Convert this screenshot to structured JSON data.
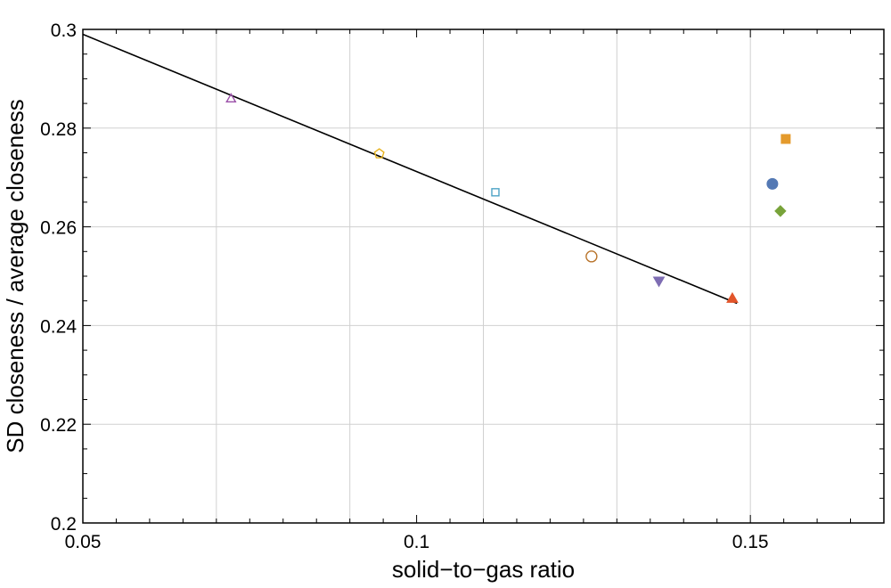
{
  "chart_data": {
    "type": "scatter",
    "title": "",
    "xlabel": "solid−to−gas ratio",
    "ylabel": "SD closeness / average closeness",
    "xlim": [
      0.05,
      0.17
    ],
    "ylim": [
      0.2,
      0.3
    ],
    "x_ticks": [
      {
        "value": 0.05,
        "label": "0.05"
      },
      {
        "value": 0.1,
        "label": "0.1"
      },
      {
        "value": 0.15,
        "label": "0.15"
      }
    ],
    "y_ticks": [
      {
        "value": 0.2,
        "label": "0.2"
      },
      {
        "value": 0.22,
        "label": "0.22"
      },
      {
        "value": 0.24,
        "label": "0.24"
      },
      {
        "value": 0.26,
        "label": "0.26"
      },
      {
        "value": 0.28,
        "label": "0.28"
      },
      {
        "value": 0.3,
        "label": "0.3"
      }
    ],
    "grid": true,
    "fit_line": {
      "x": [
        0.05,
        0.148
      ],
      "y": [
        0.299,
        0.2445
      ],
      "color": "#000000"
    },
    "points": [
      {
        "x": 0.0722,
        "y": 0.286,
        "marker": "triangle-up",
        "filled": false,
        "color": "#9a4fa8"
      },
      {
        "x": 0.0944,
        "y": 0.2748,
        "marker": "pentagon",
        "filled": false,
        "color": "#e6b21e"
      },
      {
        "x": 0.1118,
        "y": 0.267,
        "marker": "square",
        "filled": false,
        "color": "#4ea3c6"
      },
      {
        "x": 0.1262,
        "y": 0.254,
        "marker": "circle",
        "filled": false,
        "color": "#b8732a"
      },
      {
        "x": 0.1363,
        "y": 0.249,
        "marker": "triangle-down",
        "filled": true,
        "color": "#7e6db3"
      },
      {
        "x": 0.1473,
        "y": 0.2455,
        "marker": "triangle-up",
        "filled": true,
        "color": "#e2552a"
      },
      {
        "x": 0.1533,
        "y": 0.2687,
        "marker": "circle",
        "filled": true,
        "color": "#5479b4"
      },
      {
        "x": 0.1545,
        "y": 0.2632,
        "marker": "diamond",
        "filled": true,
        "color": "#78a33a"
      },
      {
        "x": 0.1553,
        "y": 0.2778,
        "marker": "square",
        "filled": true,
        "color": "#e49a2c"
      }
    ]
  }
}
